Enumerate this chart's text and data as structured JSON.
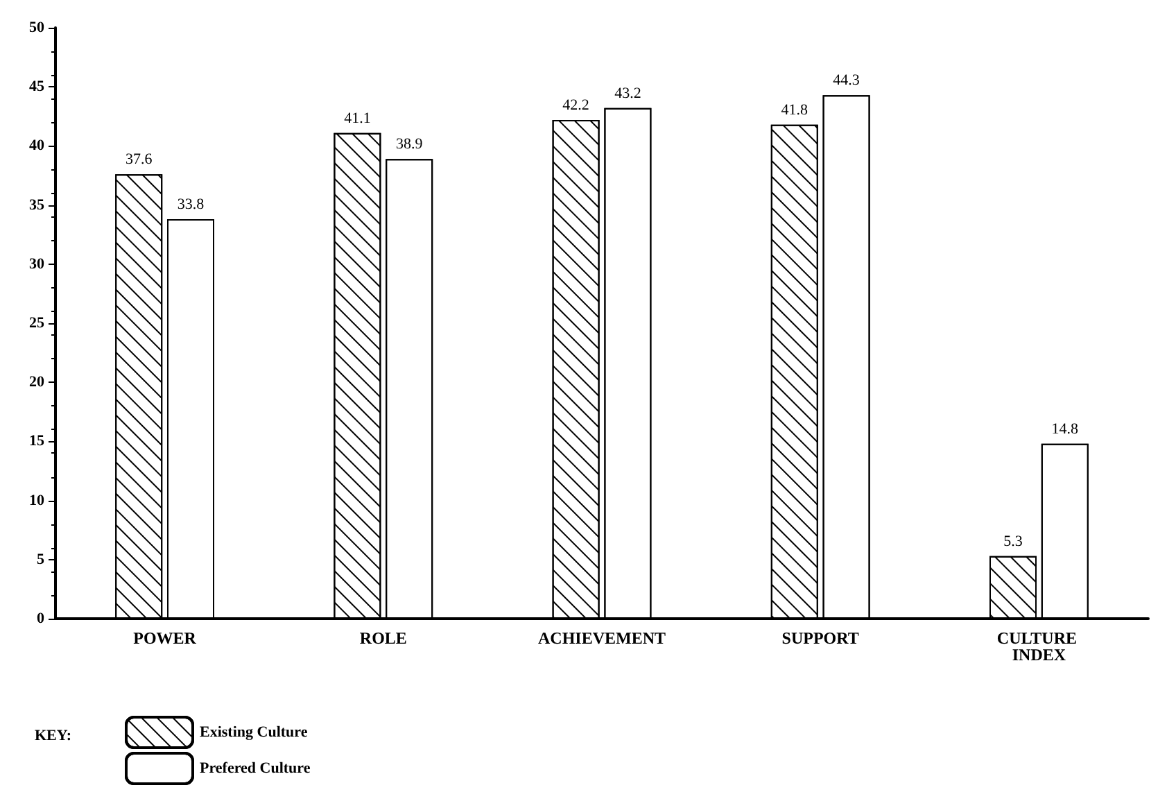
{
  "chart_data": {
    "type": "bar",
    "categories": [
      "POWER",
      "ROLE",
      "ACHIEVEMENT",
      "SUPPORT",
      "CULTURE INDEX"
    ],
    "series": [
      {
        "name": "Existing Culture",
        "color": "#ffffff",
        "values": [
          37.6,
          41.1,
          42.2,
          41.8,
          5.3
        ]
      },
      {
        "name": "Prefered Culture",
        "color": "#ffffff",
        "values": [
          33.8,
          38.9,
          43.2,
          44.3,
          14.8
        ]
      }
    ],
    "ylim": [
      0,
      50
    ],
    "yticks": [
      0,
      5,
      10,
      15,
      20,
      25,
      30,
      35,
      40,
      45,
      50
    ],
    "grid": false,
    "data_labels": true,
    "legend": "bottom left",
    "legend_title": "KEY:"
  }
}
